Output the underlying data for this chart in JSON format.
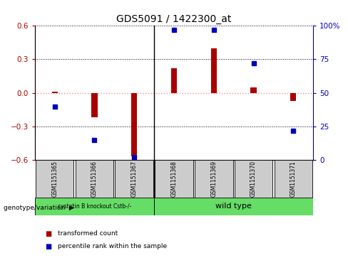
{
  "title": "GDS5091 / 1422300_at",
  "samples": [
    "GSM1151365",
    "GSM1151366",
    "GSM1151367",
    "GSM1151368",
    "GSM1151369",
    "GSM1151370",
    "GSM1151371"
  ],
  "red_bars": [
    0.01,
    -0.22,
    -0.57,
    0.22,
    0.4,
    0.05,
    -0.07
  ],
  "blue_dots": [
    40,
    15,
    2,
    97,
    97,
    72,
    22
  ],
  "ylim_left": [
    -0.6,
    0.6
  ],
  "ylim_right": [
    0,
    100
  ],
  "yticks_left": [
    -0.6,
    -0.3,
    0.0,
    0.3,
    0.6
  ],
  "yticks_right": [
    0,
    25,
    50,
    75,
    100
  ],
  "ytick_labels_right": [
    "0",
    "25",
    "50",
    "75",
    "100%"
  ],
  "group1_label": "cystatin B knockout Cstb-/-",
  "group2_label": "wild type",
  "group1_end": 2,
  "group2_start": 3,
  "group_color": "#66DD66",
  "sample_box_color": "#CCCCCC",
  "group_label_text": "genotype/variation",
  "legend_red_label": "transformed count",
  "legend_blue_label": "percentile rank within the sample",
  "bar_color": "#AA0000",
  "dot_color": "#0000BB",
  "zero_line_color": "#FF8888",
  "grid_color": "#000000",
  "bg_color": "#FFFFFF",
  "bar_width": 0.15,
  "separator_x": 2.5,
  "xlim": [
    -0.5,
    6.5
  ]
}
